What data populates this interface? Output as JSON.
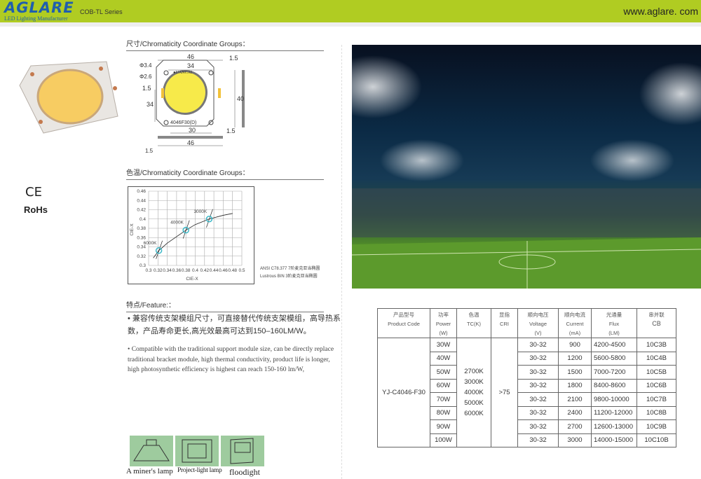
{
  "header": {
    "logo": "AGLARE",
    "logo_sub": "LED Lighting Manufacturer",
    "series": "COB-TL Series",
    "url": "www.aglare. com",
    "color": "#b0cc22"
  },
  "sections": {
    "dimensions": "尺寸/Chromaticity Coordinate Groups：",
    "color_temp": "色温/Chromaticity Coordinate Groups：",
    "feature": "特点/Feature:："
  },
  "certs": {
    "ce": "CE",
    "rohs": "RoHs"
  },
  "drawing": {
    "labels": [
      "46",
      "34",
      "1.5",
      "Φ3.4",
      "Φ2.6",
      "1.5",
      "34",
      "40",
      "30",
      "1.5",
      "46",
      "1.5"
    ],
    "brand": "●UANCAI",
    "model": "4046F30(D)"
  },
  "chart_data": {
    "type": "line",
    "xlabel": "CIE-X",
    "ylabel": "CIE-X",
    "xlim": [
      0.3,
      0.5
    ],
    "ylim": [
      0.3,
      0.46
    ],
    "xticks": [
      "0.3",
      "0.32",
      "0.34",
      "0.36",
      "0.38",
      "0.4",
      "0.42",
      "0.44",
      "0.46",
      "0.48",
      "0.5"
    ],
    "yticks": [
      "0.3",
      "0.32",
      "0.34",
      "0.36",
      "0.38",
      "0.4",
      "0.42",
      "0.44",
      "0.46"
    ],
    "grid": true,
    "curve": {
      "x": [
        0.31,
        0.322,
        0.34,
        0.36,
        0.38,
        0.4,
        0.43,
        0.46,
        0.48
      ],
      "y": [
        0.316,
        0.332,
        0.348,
        0.362,
        0.376,
        0.388,
        0.4,
        0.408,
        0.412
      ]
    },
    "points": [
      {
        "label": "6000K",
        "x": 0.322,
        "y": 0.332
      },
      {
        "label": "4000K",
        "x": 0.38,
        "y": 0.376
      },
      {
        "label": "3000K",
        "x": 0.43,
        "y": 0.4
      }
    ],
    "notes": [
      "ANSI C78.377 7阶麦克亚当椭圆",
      "Lustrous BIN 3阶麦克亚当椭圆"
    ]
  },
  "features": {
    "cn": "兼容传统支架模组尺寸，可直接替代传统支架模组，高导热系数，产品寿命更长,高光效最高可达到150–160LM/W。",
    "en": "Compatible with the traditional support module size, can be directly replace traditional bracket module, high thermal conductivity, product life is longer, high photosynthetic efficiency is highest can reach 150-160 lm/W,"
  },
  "applications": [
    {
      "label": "A miner's lamp",
      "icon": "miner-lamp-icon"
    },
    {
      "label": "Project-light lamp",
      "icon": "project-light-icon"
    },
    {
      "label": "floodight",
      "icon": "floodlight-icon"
    }
  ],
  "table": {
    "headers": [
      [
        "产品型号",
        "Product Code"
      ],
      [
        "功率",
        "Power",
        "(W)"
      ],
      [
        "色温",
        "TC(K)"
      ],
      [
        "显指",
        "CRI"
      ],
      [
        "顺向电压",
        "Voltage",
        "(V)"
      ],
      [
        "顺向电流",
        "Current",
        "(mA)"
      ],
      [
        "光通量",
        "Flux",
        "(LM)"
      ],
      [
        "串并联",
        "CB"
      ]
    ],
    "product_code": "YJ-C4046-F30",
    "tc": [
      "2700K",
      "3000K",
      "4000K",
      "5000K",
      "6000K"
    ],
    "cri": ">75",
    "rows": [
      [
        "30W",
        "30-32",
        "900",
        "4200-4500",
        "10C3B"
      ],
      [
        "40W",
        "30-32",
        "1200",
        "5600-5800",
        "10C4B"
      ],
      [
        "50W",
        "30-32",
        "1500",
        "7000-7200",
        "10C5B"
      ],
      [
        "60W",
        "30-32",
        "1800",
        "8400-8600",
        "10C6B"
      ],
      [
        "70W",
        "30-32",
        "2100",
        "9800-10000",
        "10C7B"
      ],
      [
        "80W",
        "30-32",
        "2400",
        "11200-12000",
        "10C8B"
      ],
      [
        "90W",
        "30-32",
        "2700",
        "12600-13000",
        "10C9B"
      ],
      [
        "100W",
        "30-32",
        "3000",
        "14000-15000",
        "10C10B"
      ]
    ]
  }
}
